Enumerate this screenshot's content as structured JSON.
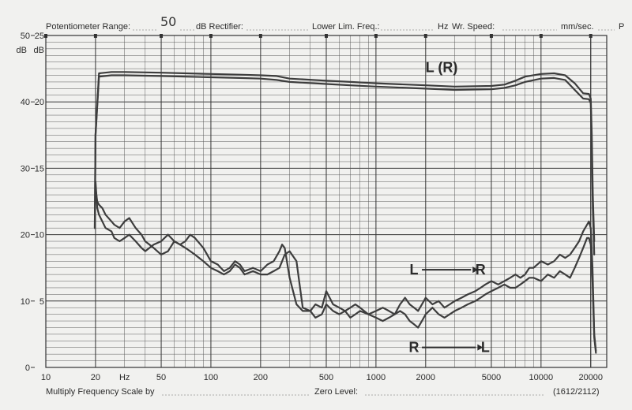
{
  "header": {
    "potentiometer_label": "Potentiometer Range:",
    "potentiometer_value": "50",
    "db_rectifier_label": "dB Rectifier:",
    "lower_lim_label": "Lower Lim. Freq.:",
    "hz_label": "Hz",
    "wr_speed_label": "Wr. Speed:",
    "speed_unit": "mm/sec.",
    "p_label": "P"
  },
  "footer": {
    "multiply_label": "Multiply Frequency Scale by",
    "zero_level_label": "Zero Level:",
    "form_number": "(1612/2112)"
  },
  "chart_data": {
    "type": "line",
    "title": "",
    "xlabel": "Hz",
    "xscale": "log",
    "xlim": [
      10,
      25000
    ],
    "ylim": [
      0,
      50
    ],
    "ylabel_left": "dB",
    "ylabel_right": "dB",
    "grid": true,
    "x_ticks": [
      10,
      20,
      50,
      100,
      200,
      500,
      1000,
      2000,
      5000,
      10000,
      20000
    ],
    "x_tick_labels": [
      "10",
      "20",
      "50",
      "100",
      "200",
      "500",
      "1000",
      "2000",
      "5000",
      "10000",
      "20000"
    ],
    "y_ticks_left": [
      0,
      10,
      20,
      30,
      40,
      50
    ],
    "y_tick_labels_left": [
      "0",
      "10",
      "20",
      "30",
      "40",
      "50"
    ],
    "y_ticks_right_values": [
      10,
      20,
      30,
      40,
      50
    ],
    "y_tick_labels_right": [
      "5",
      "10",
      "15",
      "20",
      "25"
    ],
    "annotations": [
      {
        "text": "L (R)",
        "x": 2500,
        "y": 44.5
      },
      {
        "text": "L",
        "x": 1700,
        "y": 14
      },
      {
        "text": "R",
        "x": 4300,
        "y": 14
      },
      {
        "text": "R",
        "x": 1700,
        "y": 2.3
      },
      {
        "text": "L",
        "x": 4600,
        "y": 2.3
      }
    ],
    "series": [
      {
        "x": [
          19.8,
          20,
          21,
          25,
          30,
          50,
          100,
          150,
          200,
          250,
          300,
          500,
          700,
          1000,
          2000,
          3000,
          5000,
          6000,
          7000,
          8000,
          10000,
          12000,
          14000,
          16000,
          18000,
          19500,
          20000,
          20300,
          20600,
          21000
        ],
        "y": [
          21,
          35,
          44.3,
          44.5,
          44.5,
          44.4,
          44.2,
          44.1,
          44.0,
          43.9,
          43.5,
          43.2,
          43.0,
          42.8,
          42.5,
          42.3,
          42.4,
          42.6,
          43.2,
          43.8,
          44.2,
          44.3,
          44.0,
          42.8,
          41.3,
          41.2,
          40.5,
          35,
          26,
          19
        ]
      },
      {
        "x": [
          19.8,
          20,
          21,
          25,
          30,
          50,
          100,
          150,
          200,
          250,
          300,
          500,
          700,
          1000,
          2000,
          3000,
          5000,
          6000,
          7000,
          8000,
          10000,
          12000,
          14000,
          16000,
          18000,
          19500,
          20000,
          20300,
          20600,
          21000
        ],
        "y": [
          21,
          35,
          43.8,
          44.0,
          44.0,
          43.9,
          43.7,
          43.6,
          43.5,
          43.3,
          43.0,
          42.7,
          42.5,
          42.3,
          42.0,
          41.8,
          41.9,
          42.1,
          42.5,
          43.0,
          43.5,
          43.6,
          43.3,
          41.8,
          40.5,
          40.4,
          39.8,
          33,
          24,
          17
        ]
      },
      {
        "x": [
          20,
          20.5,
          21,
          22,
          23,
          25,
          26,
          28,
          30,
          32,
          35,
          38,
          40,
          45,
          50,
          55,
          60,
          65,
          70,
          75,
          80,
          90,
          100,
          110,
          120,
          130,
          140,
          150,
          160,
          180,
          200,
          220,
          240,
          260,
          270,
          280,
          300,
          330,
          360,
          400,
          430,
          470,
          500,
          550,
          600,
          650,
          700,
          750,
          800,
          900,
          1000,
          1100,
          1200,
          1300,
          1400,
          1500,
          1600,
          1700,
          1800,
          1900,
          2000,
          2200,
          2400,
          2600,
          2800,
          3000,
          3300,
          3600,
          4000,
          4300,
          4600,
          5000,
          5500,
          6000,
          6500,
          7000,
          7500,
          8000,
          8500,
          9000,
          10000,
          11000,
          12000,
          13000,
          14000,
          15000,
          16000,
          17000,
          18000,
          19000,
          19500,
          20000,
          20500,
          21000,
          21500
        ],
        "y": [
          28,
          24,
          23,
          22,
          21,
          20.5,
          19.5,
          19,
          19.5,
          20,
          19,
          18,
          17.5,
          18.5,
          19,
          20,
          19,
          18.5,
          19,
          20,
          19.5,
          18,
          16,
          15.5,
          14.5,
          15,
          16,
          15.5,
          14.5,
          15,
          14.5,
          15.5,
          16,
          17.5,
          18.5,
          18,
          13.5,
          9.5,
          8.5,
          8.5,
          9.5,
          9,
          11.5,
          9.5,
          9,
          8.5,
          9,
          9.5,
          9,
          8,
          8.5,
          9,
          8.5,
          8,
          9.5,
          10.5,
          9.5,
          9,
          8.5,
          9.5,
          10.5,
          9.5,
          10,
          9,
          9.5,
          10,
          10.5,
          11,
          11.5,
          12,
          12.5,
          13,
          12.5,
          13,
          13.5,
          14,
          13.5,
          14,
          15,
          15,
          16,
          15.5,
          16,
          17,
          16.5,
          17,
          18,
          19,
          20.5,
          21.5,
          22,
          21,
          15,
          5,
          2.5
        ]
      },
      {
        "x": [
          20,
          20.5,
          21,
          22,
          23,
          25,
          26,
          28,
          30,
          32,
          35,
          38,
          40,
          45,
          50,
          55,
          60,
          65,
          70,
          75,
          80,
          90,
          100,
          110,
          120,
          130,
          140,
          150,
          160,
          180,
          200,
          220,
          240,
          260,
          270,
          280,
          300,
          330,
          360,
          400,
          430,
          470,
          500,
          550,
          600,
          650,
          700,
          750,
          800,
          900,
          1000,
          1100,
          1200,
          1300,
          1400,
          1500,
          1600,
          1700,
          1800,
          1900,
          2000,
          2200,
          2400,
          2600,
          2800,
          3000,
          3300,
          3600,
          4000,
          4300,
          4600,
          5000,
          5500,
          6000,
          6500,
          7000,
          7500,
          8000,
          8500,
          9000,
          10000,
          11000,
          12000,
          13000,
          14000,
          15000,
          16000,
          17000,
          18000,
          19000,
          19500,
          20000,
          20500,
          21000,
          21500
        ],
        "y": [
          27,
          25,
          24.5,
          24,
          23,
          22,
          21.5,
          21,
          22,
          22.5,
          21,
          20,
          19,
          18,
          17,
          17.5,
          19,
          18.5,
          18,
          17.5,
          17,
          16,
          15,
          14.5,
          14,
          14.5,
          15.5,
          15,
          14,
          14.5,
          14,
          14,
          14.5,
          15,
          16,
          17,
          17.5,
          16,
          9,
          8.5,
          7.5,
          8,
          9.5,
          8.5,
          8,
          8.5,
          7.5,
          8,
          8.5,
          8,
          7.5,
          7,
          7.5,
          8,
          8.5,
          8,
          7,
          6.5,
          6,
          7,
          8,
          9,
          8,
          7.5,
          8,
          8.5,
          9,
          9.5,
          10,
          10.5,
          11,
          11.5,
          12,
          12.5,
          12,
          12,
          12.5,
          13,
          13.5,
          13.5,
          13,
          14,
          13.5,
          14.5,
          14,
          13.5,
          15,
          16.5,
          18,
          19.5,
          19.5,
          18.5,
          13,
          4.5,
          2.2
        ]
      }
    ]
  }
}
